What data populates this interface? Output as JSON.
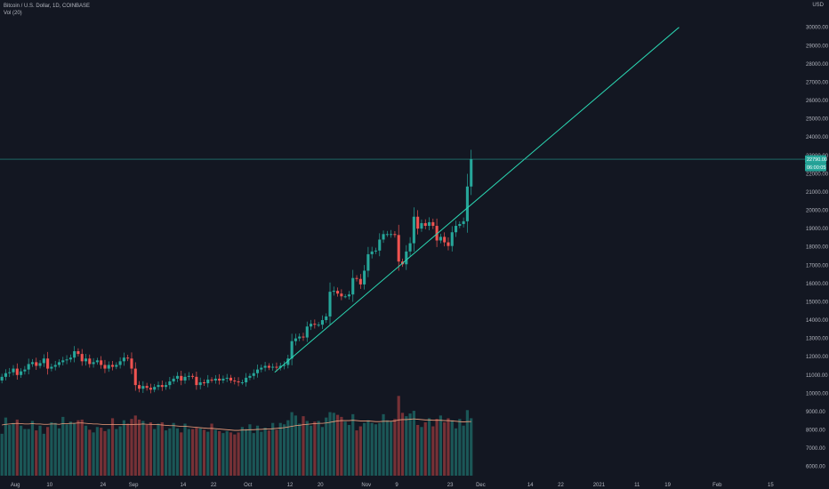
{
  "header": {
    "symbol": "Bitcoin / U.S. Dollar, 1D, COINBASE",
    "volume_indicator": "Vol (20)"
  },
  "price_scale": {
    "currency": "USD",
    "last_price_label": "22790.00",
    "countdown_label": "06:00:05"
  },
  "colors": {
    "background": "#131722",
    "up": "#26a69a",
    "down": "#ef5350",
    "trendline": "#2bd9b4",
    "volume_ma": "#f2a07e"
  },
  "chart_data": {
    "type": "candlestick",
    "title": "Bitcoin / U.S. Dollar, 1D, COINBASE",
    "y_axis": {
      "min": 5500,
      "max": 31200,
      "ticks": [
        6000,
        7000,
        8000,
        9000,
        10000,
        11000,
        12000,
        13000,
        14000,
        15000,
        16000,
        17000,
        18000,
        19000,
        20000,
        21000,
        22000,
        23000,
        24000,
        25000,
        26000,
        27000,
        28000,
        29000,
        30000
      ],
      "tick_labels": [
        "6000.00",
        "7000.00",
        "8000.00",
        "9000.00",
        "10000.00",
        "11000.00",
        "12000.00",
        "13000.00",
        "14000.00",
        "15000.00",
        "16000.00",
        "17000.00",
        "18000.00",
        "19000.00",
        "20000.00",
        "21000.00",
        "22000.00",
        "23000.00",
        "24000.00",
        "25000.00",
        "26000.00",
        "27000.00",
        "28000.00",
        "29000.00",
        "30000.00"
      ]
    },
    "x_axis": {
      "start_date": "2020-07-28",
      "end_date": "2021-02-24",
      "ticks": [
        {
          "date": "2020-08-01",
          "label": "Aug"
        },
        {
          "date": "2020-08-10",
          "label": "10"
        },
        {
          "date": "2020-08-24",
          "label": "24"
        },
        {
          "date": "2020-09-01",
          "label": "Sep"
        },
        {
          "date": "2020-09-14",
          "label": "14"
        },
        {
          "date": "2020-09-22",
          "label": "22"
        },
        {
          "date": "2020-10-01",
          "label": "Oct"
        },
        {
          "date": "2020-10-12",
          "label": "12"
        },
        {
          "date": "2020-10-20",
          "label": "20"
        },
        {
          "date": "2020-11-01",
          "label": "Nov"
        },
        {
          "date": "2020-11-09",
          "label": "9"
        },
        {
          "date": "2020-11-23",
          "label": "23"
        },
        {
          "date": "2020-12-01",
          "label": "Dec"
        },
        {
          "date": "2020-12-14",
          "label": "14"
        },
        {
          "date": "2020-12-22",
          "label": "22"
        },
        {
          "date": "2021-01-01",
          "label": "2021"
        },
        {
          "date": "2021-01-11",
          "label": "11"
        },
        {
          "date": "2021-01-19",
          "label": "19"
        },
        {
          "date": "2021-02-01",
          "label": "Feb"
        },
        {
          "date": "2021-02-15",
          "label": "15"
        }
      ]
    },
    "price_series": {
      "start_date": "2020-07-28",
      "close": [
        10900,
        11100,
        11150,
        11350,
        11000,
        11200,
        11300,
        11600,
        11700,
        11500,
        11650,
        11900,
        11350,
        11450,
        11550,
        11700,
        11800,
        11850,
        11950,
        12300,
        12150,
        11750,
        11900,
        11600,
        11700,
        11800,
        11550,
        11350,
        11550,
        11450,
        11550,
        11750,
        11950,
        11900,
        11350,
        10450,
        10250,
        10400,
        10300,
        10200,
        10350,
        10450,
        10350,
        10450,
        10650,
        10800,
        10950,
        10700,
        10900,
        10950,
        10900,
        10450,
        10600,
        10550,
        10750,
        10700,
        10800,
        10700,
        10800,
        10850,
        10700,
        10650,
        10600,
        10600,
        10850,
        10950,
        11100,
        11300,
        11400,
        11500,
        11400,
        11450,
        11400,
        11500,
        11550,
        11900,
        12850,
        13000,
        13100,
        13050,
        13650,
        13800,
        13750,
        13750,
        14000,
        14200,
        15550,
        15600,
        15450,
        15300,
        15300,
        15400,
        16300,
        16250,
        15950,
        16700,
        17600,
        17750,
        17800,
        18400,
        18700,
        18700,
        18700,
        18650,
        17200,
        17050,
        17750,
        18200,
        19650,
        19000,
        19300,
        19150,
        19350,
        19150,
        18350,
        18550,
        18250,
        18050,
        18800,
        19150,
        19250,
        19400,
        21300,
        22790
      ],
      "open": [
        10700,
        10900,
        11100,
        11150,
        11350,
        11000,
        11200,
        11300,
        11600,
        11700,
        11500,
        11650,
        11900,
        11350,
        11450,
        11550,
        11700,
        11800,
        11850,
        11950,
        12300,
        12150,
        11750,
        11900,
        11600,
        11700,
        11800,
        11550,
        11350,
        11550,
        11450,
        11550,
        11750,
        11950,
        11900,
        11350,
        10450,
        10250,
        10400,
        10300,
        10200,
        10350,
        10450,
        10350,
        10450,
        10650,
        10800,
        10950,
        10700,
        10900,
        10950,
        10900,
        10450,
        10600,
        10550,
        10750,
        10700,
        10800,
        10700,
        10800,
        10850,
        10700,
        10650,
        10600,
        10600,
        10850,
        10950,
        11100,
        11300,
        11400,
        11500,
        11400,
        11450,
        11400,
        11500,
        11550,
        11900,
        12850,
        13000,
        13100,
        13050,
        13650,
        13800,
        13750,
        13750,
        14000,
        14200,
        15550,
        15600,
        15450,
        15300,
        15300,
        15400,
        16300,
        16250,
        15950,
        16700,
        17600,
        17750,
        17800,
        18400,
        18700,
        18700,
        18700,
        18650,
        17200,
        17050,
        17750,
        18200,
        19650,
        19000,
        19300,
        19150,
        19350,
        19150,
        18350,
        18550,
        18250,
        18050,
        18800,
        19150,
        19250,
        19400,
        21300
      ]
    },
    "volume_series": [
      6200,
      8600,
      7500,
      7800,
      8300,
      7400,
      6900,
      6900,
      8100,
      6700,
      7400,
      6200,
      7200,
      7900,
      7800,
      7000,
      8700,
      7600,
      8000,
      7700,
      8200,
      8300,
      7400,
      6800,
      6400,
      7200,
      7100,
      6600,
      6900,
      8500,
      6900,
      7300,
      8200,
      7700,
      8400,
      8900,
      8300,
      8100,
      7500,
      7900,
      6900,
      7700,
      7900,
      6700,
      7000,
      7800,
      7000,
      6400,
      7700,
      6900,
      6900,
      7100,
      7000,
      6800,
      6500,
      7700,
      6800,
      6600,
      6300,
      6600,
      6400,
      6100,
      6400,
      7200,
      6900,
      7600,
      6300,
      7400,
      6500,
      7100,
      6700,
      7800,
      6800,
      7800,
      7600,
      8200,
      9400,
      8900,
      7700,
      8800,
      8100,
      7400,
      8000,
      8100,
      7200,
      8600,
      9400,
      9300,
      9000,
      8700,
      8000,
      7500,
      9100,
      6700,
      7300,
      7800,
      8200,
      7800,
      7600,
      7800,
      9100,
      8200,
      8000,
      8400,
      11800,
      9300,
      8800,
      9200,
      9600,
      7500,
      7200,
      7900,
      8500,
      7300,
      8400,
      8900,
      7900,
      8500,
      8200,
      7000,
      8400,
      7400,
      9700,
      8500
    ],
    "volume_ma_series": [
      7500,
      7600,
      7650,
      7700,
      7750,
      7700,
      7650,
      7650,
      7700,
      7650,
      7650,
      7600,
      7600,
      7650,
      7650,
      7600,
      7700,
      7700,
      7750,
      7750,
      7800,
      7800,
      7750,
      7700,
      7650,
      7650,
      7600,
      7550,
      7550,
      7600,
      7550,
      7550,
      7550,
      7550,
      7550,
      7600,
      7600,
      7650,
      7600,
      7600,
      7550,
      7550,
      7500,
      7450,
      7400,
      7400,
      7350,
      7300,
      7300,
      7250,
      7200,
      7150,
      7100,
      7050,
      7000,
      7000,
      6950,
      6900,
      6850,
      6800,
      6750,
      6700,
      6700,
      6750,
      6750,
      6800,
      6800,
      6850,
      6850,
      6900,
      6900,
      6950,
      7000,
      7050,
      7100,
      7200,
      7300,
      7400,
      7450,
      7550,
      7600,
      7650,
      7700,
      7750,
      7750,
      7800,
      7900,
      8000,
      8100,
      8150,
      8150,
      8150,
      8200,
      8150,
      8100,
      8100,
      8100,
      8050,
      8000,
      8000,
      8050,
      8050,
      8050,
      8100,
      8250,
      8300,
      8300,
      8350,
      8400,
      8350,
      8300,
      8250,
      8250,
      8200,
      8200,
      8200,
      8150,
      8150,
      8100,
      8050,
      8000,
      7950,
      8000,
      8000
    ],
    "trendline": {
      "start": {
        "date": "2020-10-08",
        "value": 11150
      },
      "end": {
        "date": "2021-01-22",
        "value": 30000
      }
    },
    "horizontal_line": {
      "value": 22790
    },
    "grid": false,
    "legend": "top-left"
  }
}
